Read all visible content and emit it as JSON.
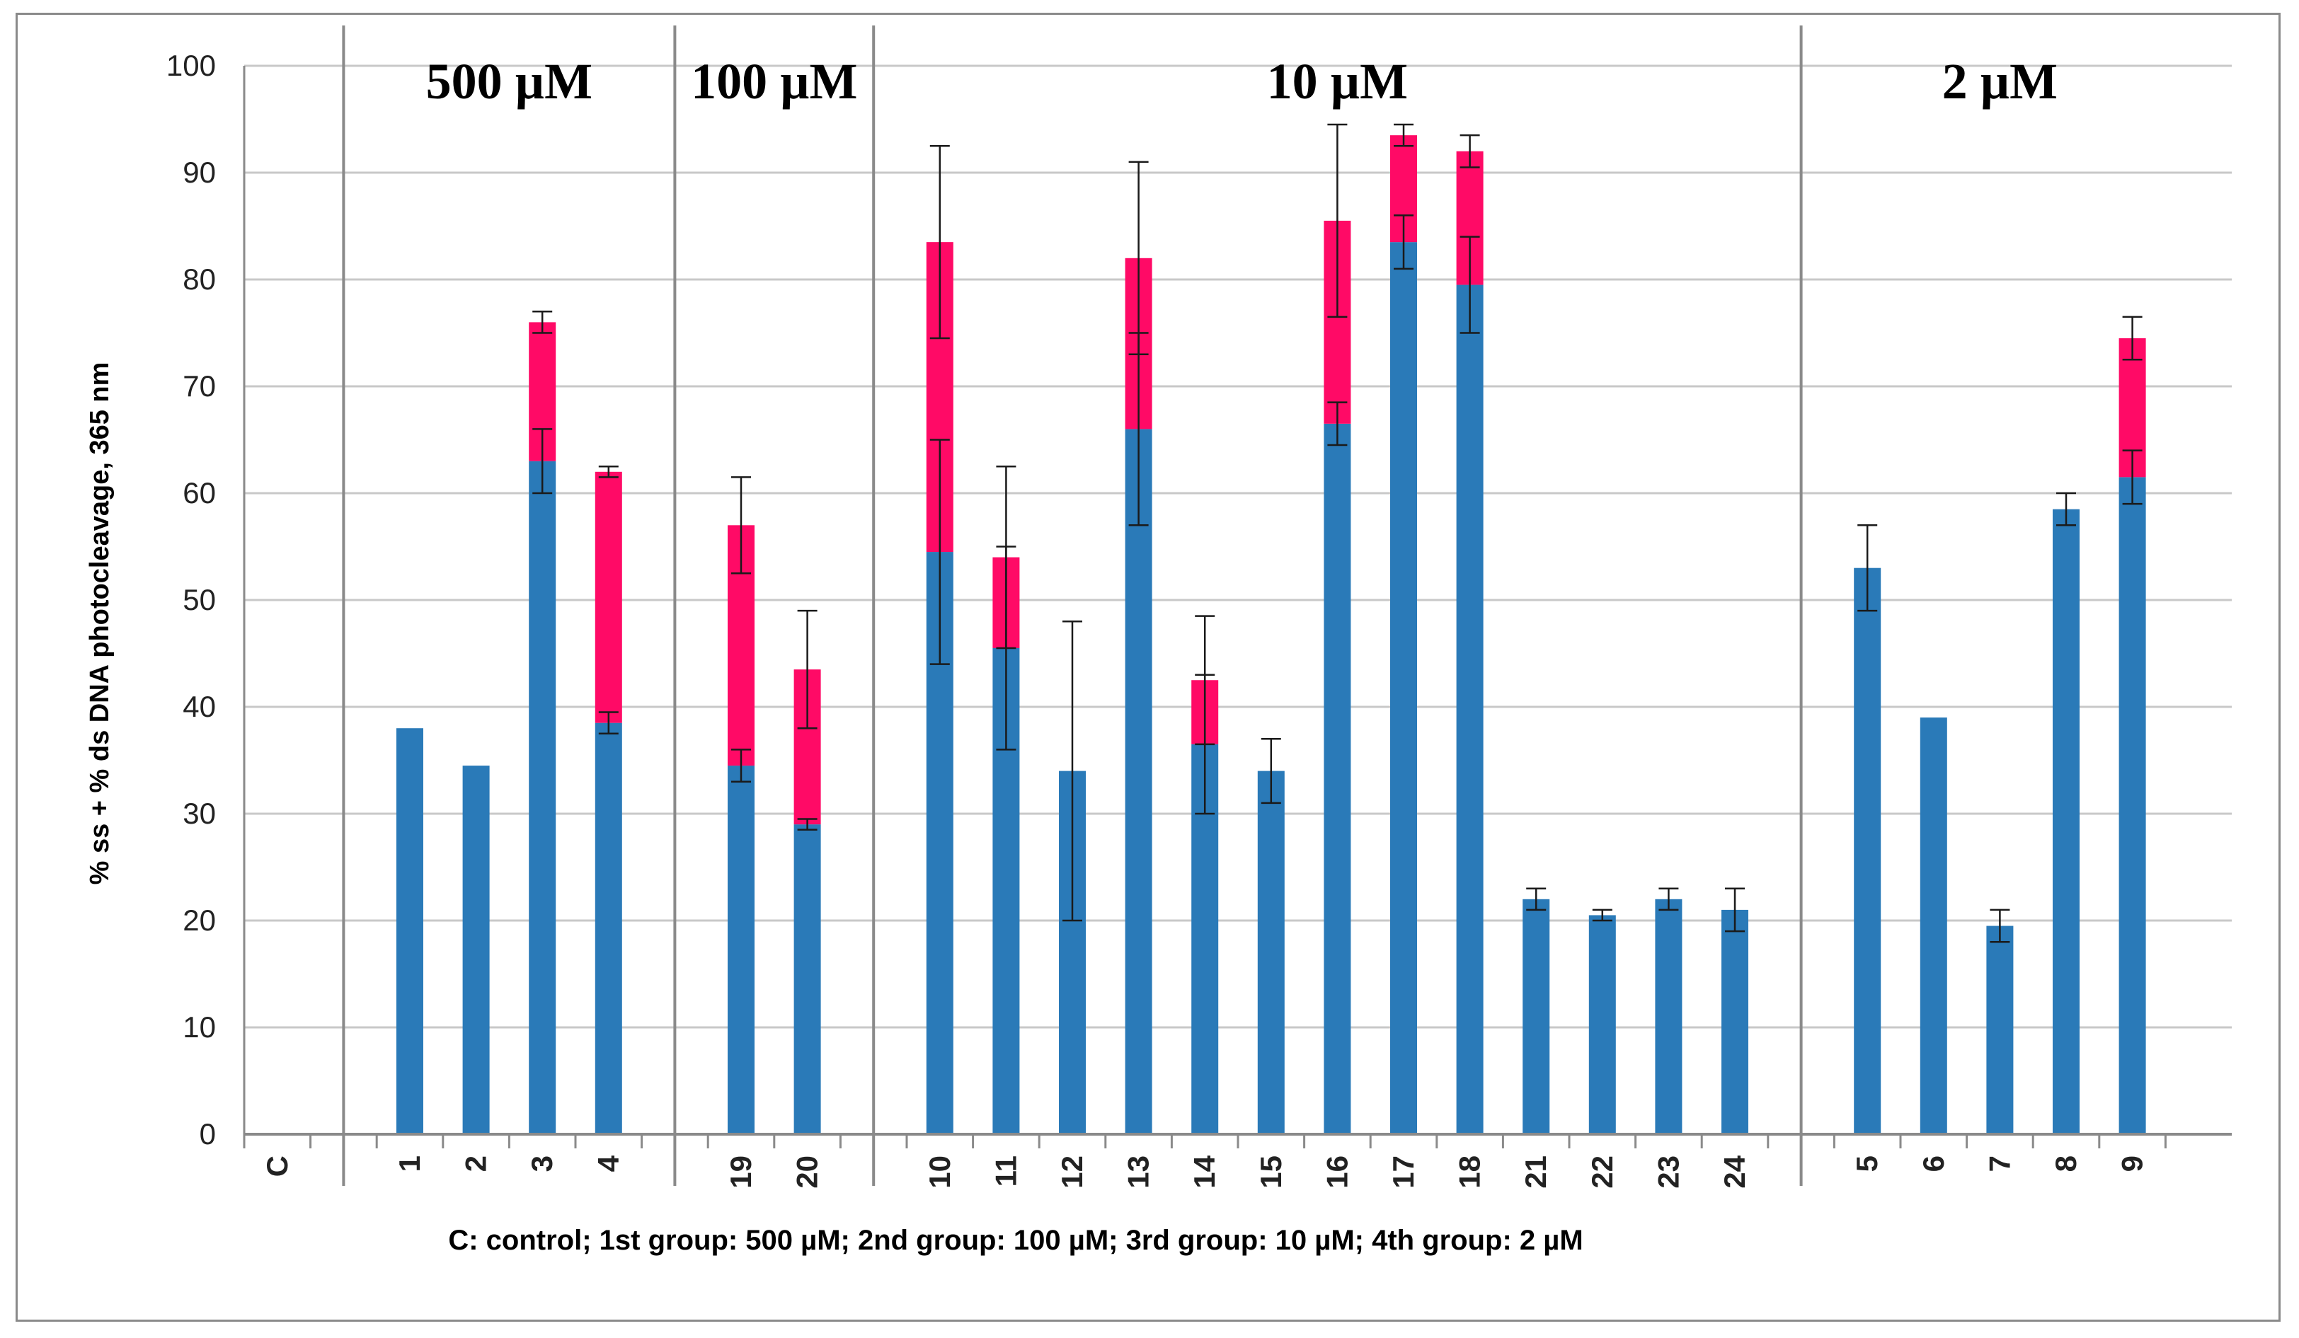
{
  "chart_data": {
    "type": "bar",
    "stacked": true,
    "title": "",
    "xlabel": "C: control; 1st group: 500 µM; 2nd group: 100 µM; 3rd group: 10 µM; 4th group: 2 µM",
    "ylabel": "% ss + % ds DNA photocleavage, 365 nm",
    "ylim": [
      0,
      100
    ],
    "yticks": [
      "0",
      "10",
      "20",
      "30",
      "40",
      "50",
      "60",
      "70",
      "80",
      "90",
      "100"
    ],
    "grid": true,
    "colors": {
      "ss": "#2a7ab8",
      "ds": "#ff0a66",
      "grid": "#c8c8c8",
      "separator": "#8a8a8a"
    },
    "groups": [
      {
        "label": "",
        "categories": [
          "C"
        ]
      },
      {
        "label": "500 µM",
        "categories": [
          "1",
          "2",
          "3",
          "4"
        ]
      },
      {
        "label": "100 µM",
        "categories": [
          "19",
          "20"
        ]
      },
      {
        "label": "10 µM",
        "categories": [
          "10",
          "11",
          "12",
          "13",
          "14",
          "15",
          "16",
          "17",
          "18",
          "21",
          "22",
          "23",
          "24"
        ]
      },
      {
        "label": "2 µM",
        "categories": [
          "5",
          "6",
          "7",
          "8",
          "9"
        ]
      }
    ],
    "categories": [
      "C",
      "1",
      "2",
      "3",
      "4",
      "19",
      "20",
      "10",
      "11",
      "12",
      "13",
      "14",
      "15",
      "16",
      "17",
      "18",
      "21",
      "22",
      "23",
      "24",
      "5",
      "6",
      "7",
      "8",
      "9"
    ],
    "series": [
      {
        "name": "ss",
        "values": [
          0,
          38,
          34.5,
          63,
          38.5,
          34.5,
          29,
          54.5,
          45.5,
          34,
          66,
          36.5,
          34,
          66.5,
          83.5,
          79.5,
          22,
          20.5,
          22,
          21,
          53,
          39,
          19.5,
          58.5,
          61.5
        ],
        "errors": [
          0,
          0,
          0,
          3,
          1,
          1.5,
          0.5,
          10.5,
          9.5,
          14,
          9,
          6.5,
          3,
          2,
          2.5,
          4.5,
          1,
          0.5,
          1,
          2,
          4,
          0,
          1.5,
          1.5,
          2.5
        ]
      },
      {
        "name": "ds",
        "values": [
          0,
          0,
          0,
          13,
          23.5,
          22.5,
          14.5,
          29,
          8.5,
          0,
          16,
          6,
          0,
          19,
          10,
          12.5,
          0,
          0,
          0,
          0,
          0,
          0,
          0,
          0,
          13
        ],
        "errors": [
          0,
          0,
          0,
          1,
          0.5,
          4.5,
          5.5,
          9,
          8.5,
          0,
          9,
          6,
          0,
          9,
          1,
          1.5,
          0,
          0,
          0,
          0,
          0,
          0,
          0,
          0,
          2
        ]
      }
    ]
  }
}
